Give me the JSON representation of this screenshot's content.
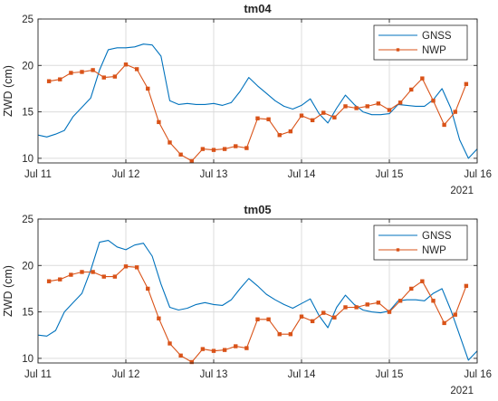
{
  "chart_data": [
    {
      "type": "line",
      "title": "tm04",
      "ylabel": "ZWD (cm)",
      "xlabel": "",
      "xlim": [
        11,
        16
      ],
      "ylim": [
        9.5,
        25
      ],
      "x_ticks": [
        11,
        12,
        13,
        14,
        15,
        16
      ],
      "x_tick_labels": [
        "Jul 11",
        "Jul 12",
        "Jul 13",
        "Jul 14",
        "Jul 15",
        "Jul 16"
      ],
      "y_ticks": [
        10,
        15,
        20,
        25
      ],
      "year_label": "2021",
      "grid": true,
      "legend_position": "top-right",
      "series": [
        {
          "name": "GNSS",
          "color": "#0072BD",
          "marker": "none",
          "x": [
            11.0,
            11.1,
            11.2,
            11.3,
            11.4,
            11.5,
            11.6,
            11.7,
            11.8,
            11.9,
            12.0,
            12.1,
            12.2,
            12.3,
            12.4,
            12.5,
            12.6,
            12.7,
            12.8,
            12.9,
            13.0,
            13.1,
            13.2,
            13.3,
            13.4,
            13.5,
            13.6,
            13.7,
            13.8,
            13.9,
            14.0,
            14.1,
            14.2,
            14.3,
            14.4,
            14.5,
            14.6,
            14.7,
            14.8,
            14.9,
            15.0,
            15.1,
            15.2,
            15.3,
            15.4,
            15.5,
            15.6,
            15.7,
            15.8,
            15.9,
            16.0
          ],
          "y": [
            12.5,
            12.3,
            12.6,
            13.0,
            14.5,
            15.5,
            16.5,
            19.5,
            21.7,
            21.9,
            21.9,
            22.0,
            22.3,
            22.2,
            21.0,
            16.2,
            15.8,
            15.9,
            15.8,
            15.8,
            15.9,
            15.7,
            16.0,
            17.2,
            18.7,
            17.8,
            17.0,
            16.2,
            15.6,
            15.3,
            15.7,
            16.4,
            14.8,
            13.8,
            15.4,
            16.8,
            15.8,
            15.0,
            14.7,
            14.7,
            14.8,
            15.8,
            15.7,
            15.6,
            15.6,
            16.3,
            17.5,
            15.4,
            12.0,
            10.0,
            11.0
          ]
        },
        {
          "name": "NWP",
          "color": "#D95319",
          "marker": "square",
          "x": [
            11.125,
            11.25,
            11.375,
            11.5,
            11.625,
            11.75,
            11.875,
            12.0,
            12.125,
            12.25,
            12.375,
            12.5,
            12.625,
            12.75,
            12.875,
            13.0,
            13.125,
            13.25,
            13.375,
            13.5,
            13.625,
            13.75,
            13.875,
            14.0,
            14.125,
            14.25,
            14.375,
            14.5,
            14.625,
            14.75,
            14.875,
            15.0,
            15.125,
            15.25,
            15.375,
            15.5,
            15.625,
            15.75,
            15.875
          ],
          "y": [
            18.3,
            18.5,
            19.2,
            19.3,
            19.5,
            18.7,
            18.8,
            20.1,
            19.6,
            17.5,
            13.9,
            11.7,
            10.4,
            9.7,
            11.0,
            10.9,
            11.0,
            11.3,
            11.1,
            14.3,
            14.2,
            12.5,
            12.9,
            14.6,
            14.1,
            14.9,
            14.4,
            15.6,
            15.4,
            15.6,
            15.9,
            15.2,
            16.0,
            17.4,
            18.6,
            16.2,
            13.6,
            15.0,
            18.0
          ]
        }
      ]
    },
    {
      "type": "line",
      "title": "tm05",
      "ylabel": "ZWD (cm)",
      "xlabel": "",
      "xlim": [
        11,
        16
      ],
      "ylim": [
        9.5,
        25
      ],
      "x_ticks": [
        11,
        12,
        13,
        14,
        15,
        16
      ],
      "x_tick_labels": [
        "Jul 11",
        "Jul 12",
        "Jul 13",
        "Jul 14",
        "Jul 15",
        "Jul 16"
      ],
      "y_ticks": [
        10,
        15,
        20,
        25
      ],
      "year_label": "2021",
      "grid": true,
      "legend_position": "top-right",
      "series": [
        {
          "name": "GNSS",
          "color": "#0072BD",
          "marker": "none",
          "x": [
            11.0,
            11.1,
            11.2,
            11.3,
            11.4,
            11.5,
            11.6,
            11.7,
            11.8,
            11.9,
            12.0,
            12.1,
            12.2,
            12.3,
            12.4,
            12.5,
            12.6,
            12.7,
            12.8,
            12.9,
            13.0,
            13.1,
            13.2,
            13.3,
            13.4,
            13.5,
            13.6,
            13.7,
            13.8,
            13.9,
            14.0,
            14.1,
            14.2,
            14.3,
            14.4,
            14.5,
            14.6,
            14.7,
            14.8,
            14.9,
            15.0,
            15.1,
            15.2,
            15.3,
            15.4,
            15.5,
            15.6,
            15.7,
            15.8,
            15.9,
            16.0
          ],
          "y": [
            12.5,
            12.4,
            13.0,
            15.0,
            16.0,
            17.0,
            19.5,
            22.5,
            22.7,
            22.0,
            21.7,
            22.2,
            22.4,
            21.0,
            18.0,
            15.5,
            15.2,
            15.4,
            15.8,
            16.0,
            15.8,
            15.7,
            16.3,
            17.5,
            18.6,
            17.8,
            16.9,
            16.3,
            15.8,
            15.4,
            15.9,
            16.4,
            14.6,
            13.3,
            15.5,
            16.8,
            15.8,
            15.2,
            15.0,
            14.9,
            15.1,
            16.2,
            16.3,
            16.3,
            16.2,
            17.0,
            17.5,
            15.2,
            12.5,
            9.8,
            10.8
          ]
        },
        {
          "name": "NWP",
          "color": "#D95319",
          "marker": "square",
          "x": [
            11.125,
            11.25,
            11.375,
            11.5,
            11.625,
            11.75,
            11.875,
            12.0,
            12.125,
            12.25,
            12.375,
            12.5,
            12.625,
            12.75,
            12.875,
            13.0,
            13.125,
            13.25,
            13.375,
            13.5,
            13.625,
            13.75,
            13.875,
            14.0,
            14.125,
            14.25,
            14.375,
            14.5,
            14.625,
            14.75,
            14.875,
            15.0,
            15.125,
            15.25,
            15.375,
            15.5,
            15.625,
            15.75,
            15.875
          ],
          "y": [
            18.3,
            18.5,
            19.0,
            19.3,
            19.3,
            18.8,
            18.8,
            19.9,
            19.8,
            17.5,
            14.3,
            11.6,
            10.3,
            9.6,
            11.0,
            10.8,
            10.9,
            11.3,
            11.1,
            14.2,
            14.2,
            12.6,
            12.6,
            14.5,
            14.0,
            14.9,
            14.4,
            15.5,
            15.5,
            15.8,
            16.0,
            15.0,
            16.2,
            17.5,
            18.3,
            16.2,
            13.8,
            14.7,
            17.8
          ]
        }
      ]
    }
  ]
}
